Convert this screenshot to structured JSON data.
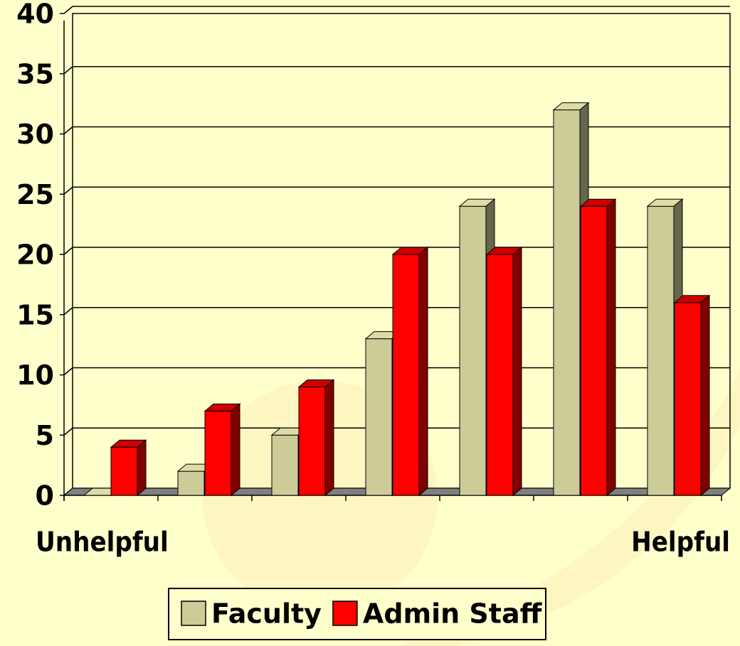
{
  "chart_data": {
    "type": "bar",
    "categories": [
      "Unhelpful",
      null,
      null,
      null,
      null,
      null,
      "Helpful"
    ],
    "series": [
      {
        "name": "Faculty",
        "color": "#cccc99",
        "values": [
          0,
          2,
          5,
          13,
          24,
          32,
          24
        ]
      },
      {
        "name": "Admin Staff",
        "color": "#ff0000",
        "values": [
          4,
          7,
          9,
          20,
          20,
          24,
          16
        ]
      }
    ],
    "ylim": [
      0,
      40
    ],
    "yticks": [
      0,
      5,
      10,
      15,
      20,
      25,
      30,
      35,
      40
    ],
    "grid": true
  }
}
